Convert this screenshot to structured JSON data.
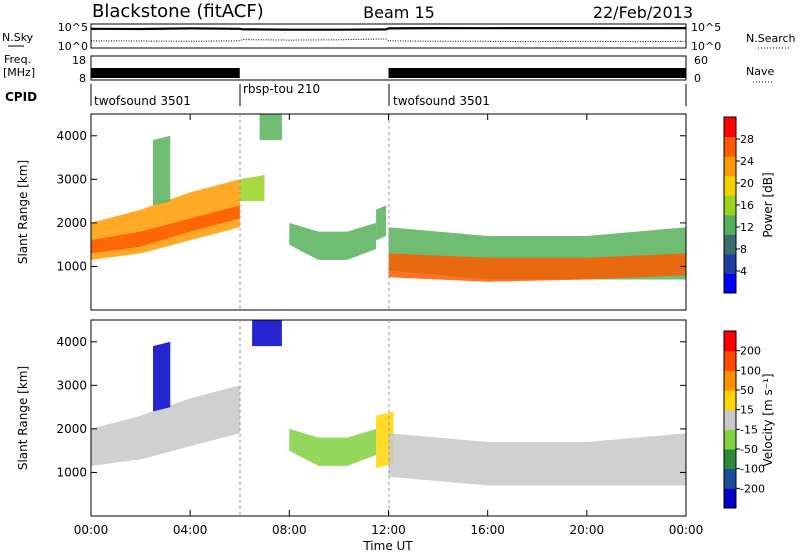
{
  "header": {
    "station": "Blackstone (fitACF)",
    "beam": "Beam 15",
    "date": "22/Feb/2013"
  },
  "colors": {
    "power_scale": [
      "#0000ff",
      "#1e3fa0",
      "#3a6e6e",
      "#56b05a",
      "#9ad21e",
      "#f3d000",
      "#ff9a00",
      "#ff5a00",
      "#ff0000"
    ],
    "velocity_scale": [
      "#0000c8",
      "#1a4d9a",
      "#2e8a3a",
      "#80d040",
      "#c8c8c8",
      "#ffd400",
      "#ff9000",
      "#ff4a00",
      "#ff0000"
    ],
    "ground_scatter": "#c8c8c8"
  },
  "chart_data": [
    {
      "type": "line",
      "panel": "noise",
      "left_label": "N.Sky",
      "right_label": "N.Search",
      "left_ticks": [
        "10^5",
        "10^0"
      ],
      "right_ticks": [
        "10^5",
        "10^0"
      ],
      "scale": "log",
      "ylim": [
        1,
        100000
      ],
      "series": [
        {
          "x": [
            0,
            2,
            4,
            6,
            6.1,
            8,
            10,
            11.9,
            12,
            14,
            16,
            18,
            20,
            22,
            24
          ],
          "values": [
            20000,
            18000,
            25000,
            20000,
            15000,
            12000,
            12000,
            14000,
            25000,
            30000,
            28000,
            30000,
            30000,
            28000,
            30000
          ]
        },
        {
          "x": [
            0,
            2,
            4,
            6,
            6.1,
            8,
            10,
            11.9,
            12,
            14,
            16,
            18,
            20,
            22,
            24
          ],
          "values": [
            20,
            18,
            15,
            20,
            40,
            30,
            35,
            60,
            20,
            15,
            15,
            12,
            15,
            12,
            15
          ]
        }
      ]
    },
    {
      "type": "bar",
      "panel": "frequency",
      "left_label": "Freq.",
      "left_unit": "[MHz]",
      "left_ticks": [
        "18",
        "8"
      ],
      "right_label": "Nave",
      "right_ticks": [
        "60",
        "0"
      ],
      "frequency_mhz": 10.5,
      "segments": [
        {
          "start": 0,
          "end": 6
        },
        {
          "start": 12,
          "end": 24
        }
      ]
    },
    {
      "type": "table",
      "panel": "cpid",
      "label": "CPID",
      "segments": [
        {
          "start": 0,
          "end": 6,
          "name": "twofsound 3501"
        },
        {
          "start": 6,
          "end": 12,
          "name": "rbsp-tou 210"
        },
        {
          "start": 12,
          "end": 24,
          "name": "twofsound 3501"
        }
      ]
    },
    {
      "type": "heatmap",
      "panel": "power",
      "ylabel": "Slant Range [km]",
      "xlabel": "Time UT",
      "ylim": [
        0,
        4500
      ],
      "xlim": [
        0,
        24
      ],
      "yticks": [
        1000,
        2000,
        3000,
        4000
      ],
      "xtick_labels": [
        "00:00",
        "04:00",
        "08:00",
        "12:00",
        "16:00",
        "20:00",
        "00:00"
      ],
      "colorbar": {
        "label": "Power [dB]",
        "ticks": [
          "28",
          "24",
          "20",
          "16",
          "12",
          "8",
          "4"
        ],
        "range": [
          0,
          30
        ]
      },
      "regions": [
        {
          "t": [
            0.0,
            6.0
          ],
          "r_low": [
            1150,
            1300,
            1600,
            1900
          ],
          "r_high": [
            2000,
            2300,
            2700,
            3000
          ],
          "value": 20
        },
        {
          "t": [
            0.0,
            6.0
          ],
          "r_low": [
            1300,
            1450,
            1800,
            2100
          ],
          "r_high": [
            1600,
            1800,
            2100,
            2400
          ],
          "value": 25
        },
        {
          "t": [
            2.5,
            3.2
          ],
          "r_low": [
            2400,
            2500
          ],
          "r_high": [
            3900,
            4000
          ],
          "value": 12
        },
        {
          "t": [
            6.0,
            7.0
          ],
          "r_low": [
            2500,
            2500
          ],
          "r_high": [
            3000,
            3100
          ],
          "value": 14
        },
        {
          "t": [
            6.8,
            7.7
          ],
          "r_low": [
            3900,
            3900
          ],
          "r_high": [
            4500,
            4500
          ],
          "value": 10
        },
        {
          "t": [
            8.0,
            11.5
          ],
          "r_low": [
            1500,
            1150,
            1150,
            1400
          ],
          "r_high": [
            2000,
            1800,
            1800,
            2000
          ],
          "value": 10
        },
        {
          "t": [
            11.5,
            11.9
          ],
          "r_low": [
            1600,
            1700
          ],
          "r_high": [
            2300,
            2400
          ],
          "value": 12
        },
        {
          "t": [
            12.0,
            24.0
          ],
          "r_low": [
            900,
            700,
            700,
            700
          ],
          "r_high": [
            1900,
            1700,
            1700,
            1900
          ],
          "value": 12
        },
        {
          "t": [
            12.0,
            24.0
          ],
          "r_low": [
            750,
            650,
            700,
            800
          ],
          "r_high": [
            1300,
            1200,
            1200,
            1300
          ],
          "value": 26
        }
      ]
    },
    {
      "type": "heatmap",
      "panel": "velocity",
      "ylabel": "Slant Range [km]",
      "xlabel": "Time UT",
      "ylim": [
        0,
        4500
      ],
      "xlim": [
        0,
        24
      ],
      "yticks": [
        1000,
        2000,
        3000,
        4000
      ],
      "xtick_labels": [
        "00:00",
        "04:00",
        "08:00",
        "12:00",
        "16:00",
        "20:00",
        "00:00"
      ],
      "colorbar": {
        "label": "Velocity [m s⁻¹]",
        "ticks": [
          "200",
          "100",
          "50",
          "15",
          "-15",
          "-50",
          "-100",
          "-200"
        ],
        "range": [
          -250,
          250
        ]
      },
      "regions": [
        {
          "t": [
            0.0,
            6.0
          ],
          "r_low": [
            1150,
            1300,
            1600,
            1900
          ],
          "r_high": [
            2000,
            2300,
            2700,
            3000
          ],
          "value": 0
        },
        {
          "t": [
            2.5,
            3.2
          ],
          "r_low": [
            2400,
            2500
          ],
          "r_high": [
            3900,
            4000
          ],
          "value": -220
        },
        {
          "t": [
            6.5,
            7.7
          ],
          "r_low": [
            3900,
            3900
          ],
          "r_high": [
            4500,
            4500
          ],
          "value": -230
        },
        {
          "t": [
            8.0,
            11.5
          ],
          "r_low": [
            1500,
            1150,
            1150,
            1400
          ],
          "r_high": [
            2000,
            1800,
            1800,
            2000
          ],
          "value": -60
        },
        {
          "t": [
            11.5,
            12.2
          ],
          "r_low": [
            1100,
            1200
          ],
          "r_high": [
            2300,
            2400
          ],
          "value": 40
        },
        {
          "t": [
            12.0,
            24.0
          ],
          "r_low": [
            900,
            700,
            700,
            700
          ],
          "r_high": [
            1900,
            1700,
            1700,
            1900
          ],
          "value": 0
        }
      ]
    }
  ]
}
